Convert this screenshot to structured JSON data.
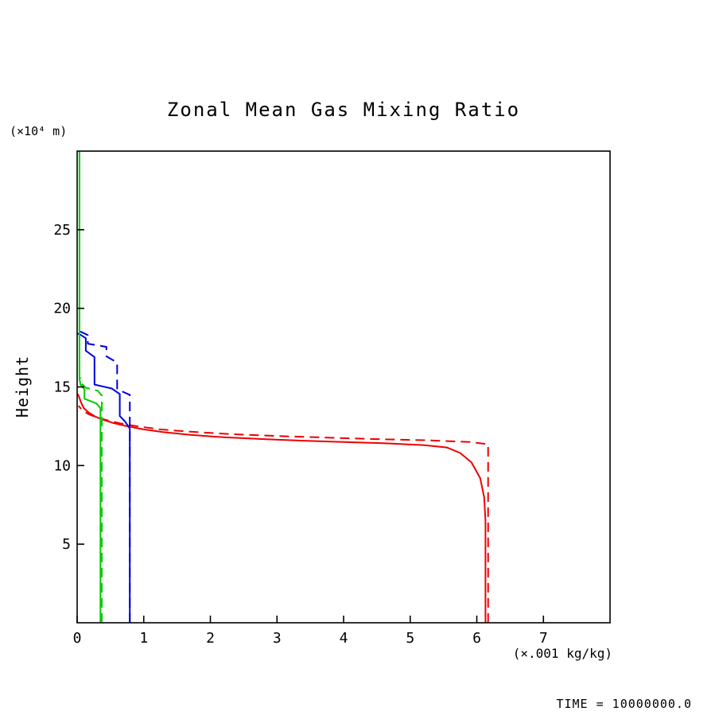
{
  "title": "Zonal Mean Gas Mixing Ratio",
  "labels": {
    "y_units": "(×10⁴ m)",
    "y_axis": "Height",
    "x_units": "(×.001 kg/kg)",
    "time": "TIME = 10000000.0"
  },
  "colors": {
    "axis": "#000000",
    "red": "#ee0000",
    "blue": "#0000dd",
    "green": "#00cc00"
  },
  "chart_data": {
    "type": "line",
    "title": "Zonal Mean Gas Mixing Ratio",
    "xlabel": "(×.001 kg/kg)",
    "ylabel": "Height (×10⁴ m)",
    "xlim": [
      0,
      8
    ],
    "ylim": [
      0,
      30
    ],
    "x_ticks": [
      0,
      1,
      2,
      3,
      4,
      5,
      6,
      7
    ],
    "y_ticks": [
      5,
      10,
      15,
      20,
      25
    ],
    "grid": false,
    "legend": "none",
    "annotation": "TIME = 10000000.0",
    "series": [
      {
        "name": "red-solid",
        "color": "#ee0000",
        "style": "solid",
        "points": [
          [
            6.13,
            0
          ],
          [
            6.13,
            6.5
          ],
          [
            6.11,
            8.0
          ],
          [
            6.05,
            9.2
          ],
          [
            5.92,
            10.2
          ],
          [
            5.75,
            10.8
          ],
          [
            5.55,
            11.15
          ],
          [
            5.2,
            11.3
          ],
          [
            4.6,
            11.42
          ],
          [
            4.0,
            11.5
          ],
          [
            3.4,
            11.58
          ],
          [
            2.8,
            11.68
          ],
          [
            2.2,
            11.8
          ],
          [
            1.7,
            11.95
          ],
          [
            1.3,
            12.12
          ],
          [
            1.0,
            12.3
          ],
          [
            0.75,
            12.5
          ],
          [
            0.55,
            12.7
          ],
          [
            0.4,
            12.9
          ],
          [
            0.28,
            13.1
          ],
          [
            0.18,
            13.35
          ],
          [
            0.1,
            13.65
          ],
          [
            0.06,
            14.0
          ],
          [
            0.03,
            14.35
          ],
          [
            0.01,
            14.55
          ]
        ]
      },
      {
        "name": "red-dashed",
        "color": "#ee0000",
        "style": "dashed",
        "points": [
          [
            6.17,
            0
          ],
          [
            6.17,
            11.35
          ],
          [
            5.9,
            11.5
          ],
          [
            5.3,
            11.6
          ],
          [
            4.5,
            11.68
          ],
          [
            3.7,
            11.78
          ],
          [
            3.0,
            11.88
          ],
          [
            2.3,
            12.0
          ],
          [
            1.7,
            12.15
          ],
          [
            1.25,
            12.3
          ],
          [
            0.9,
            12.5
          ],
          [
            0.65,
            12.68
          ],
          [
            0.45,
            12.88
          ],
          [
            0.3,
            13.05
          ],
          [
            0.18,
            13.25
          ],
          [
            0.1,
            13.45
          ],
          [
            0.05,
            13.65
          ],
          [
            0.02,
            13.8
          ]
        ]
      },
      {
        "name": "blue-solid",
        "color": "#0000dd",
        "style": "solid",
        "points": [
          [
            0.79,
            0
          ],
          [
            0.79,
            12.35
          ],
          [
            0.72,
            12.8
          ],
          [
            0.64,
            13.15
          ],
          [
            0.64,
            14.55
          ],
          [
            0.52,
            14.9
          ],
          [
            0.26,
            15.15
          ],
          [
            0.26,
            16.9
          ],
          [
            0.13,
            17.3
          ],
          [
            0.13,
            18.1
          ],
          [
            0.04,
            18.35
          ],
          [
            0.0,
            18.4
          ]
        ]
      },
      {
        "name": "blue-dashed",
        "color": "#0000dd",
        "style": "dashed",
        "points": [
          [
            0.79,
            0
          ],
          [
            0.79,
            14.5
          ],
          [
            0.6,
            14.85
          ],
          [
            0.6,
            16.55
          ],
          [
            0.44,
            16.95
          ],
          [
            0.44,
            17.55
          ],
          [
            0.16,
            17.75
          ],
          [
            0.16,
            18.3
          ],
          [
            0.06,
            18.5
          ],
          [
            0.0,
            18.55
          ]
        ]
      },
      {
        "name": "green-solid",
        "color": "#00cc00",
        "style": "solid",
        "points": [
          [
            0.35,
            0
          ],
          [
            0.35,
            13.65
          ],
          [
            0.29,
            13.95
          ],
          [
            0.11,
            14.25
          ],
          [
            0.11,
            14.85
          ],
          [
            0.05,
            15.15
          ],
          [
            0.035,
            15.5
          ],
          [
            0.035,
            30
          ]
        ]
      },
      {
        "name": "green-dashed",
        "color": "#00cc00",
        "style": "dashed",
        "points": [
          [
            0.37,
            0
          ],
          [
            0.37,
            14.45
          ],
          [
            0.31,
            14.75
          ],
          [
            0.13,
            14.95
          ],
          [
            0.06,
            15.25
          ],
          [
            0.05,
            15.6
          ]
        ]
      }
    ]
  }
}
